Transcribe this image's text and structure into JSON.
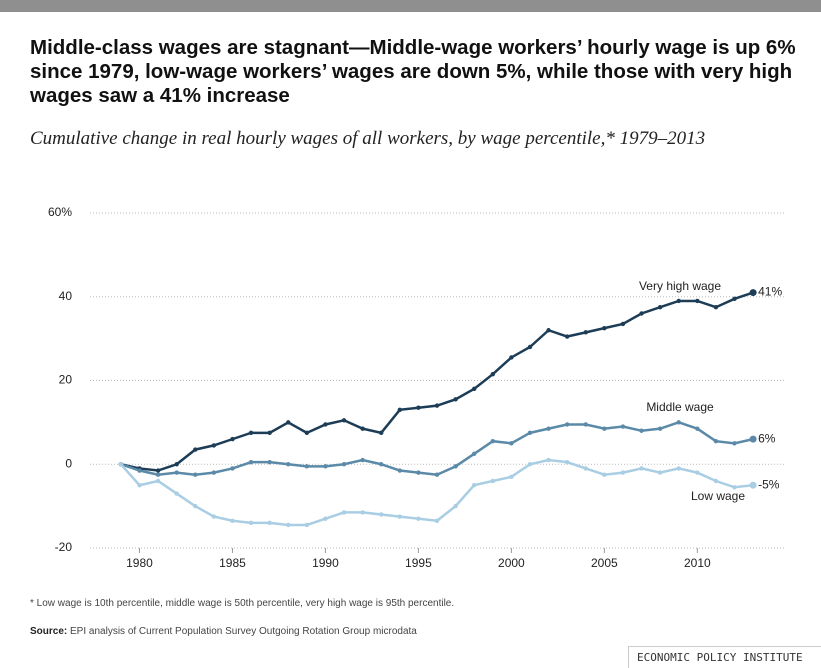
{
  "chart_data": {
    "type": "line",
    "title": "Middle-class wages are stagnant—Middle-wage workers’ hourly wage is up 6% since 1979, low-wage workers’ wages are down 5%, while those with very high wages saw a 41% increase",
    "subtitle": "Cumulative change in real hourly wages of all workers, by wage percentile,* 1979–2013",
    "x": [
      1979,
      1980,
      1981,
      1982,
      1983,
      1984,
      1985,
      1986,
      1987,
      1988,
      1989,
      1990,
      1991,
      1992,
      1993,
      1994,
      1995,
      1996,
      1997,
      1998,
      1999,
      2000,
      2001,
      2002,
      2003,
      2004,
      2005,
      2006,
      2007,
      2008,
      2009,
      2010,
      2011,
      2012,
      2013
    ],
    "series": [
      {
        "name": "Very high wage",
        "color": "#1d3d57",
        "end_label": "41%",
        "values": [
          0,
          -1,
          -1.5,
          0,
          3.5,
          4.5,
          6,
          7.5,
          7.5,
          10,
          7.5,
          9.5,
          10.5,
          8.5,
          7.5,
          13,
          13.5,
          14,
          15.5,
          18,
          21.5,
          25.5,
          28,
          32,
          30.5,
          31.5,
          32.5,
          33.5,
          36,
          37.5,
          39,
          39,
          37.5,
          39.5,
          41
        ]
      },
      {
        "name": "Middle wage",
        "color": "#5b8aa8",
        "end_label": "6%",
        "values": [
          0,
          -1.5,
          -2.5,
          -2,
          -2.5,
          -2,
          -1,
          0.5,
          0.5,
          0,
          -0.5,
          -0.5,
          0,
          1,
          0,
          -1.5,
          -2,
          -2.5,
          -0.5,
          2.5,
          5.5,
          5,
          7.5,
          8.5,
          9.5,
          9.5,
          8.5,
          9,
          8,
          8.5,
          10,
          8.5,
          5.5,
          5,
          6
        ]
      },
      {
        "name": "Low wage",
        "color": "#a9cde3",
        "end_label": "-5%",
        "values": [
          0,
          -5,
          -4,
          -7,
          -10,
          -12.5,
          -13.5,
          -14,
          -14,
          -14.5,
          -14.5,
          -13,
          -11.5,
          -11.5,
          -12,
          -12.5,
          -13,
          -13.5,
          -10,
          -5,
          -4,
          -3,
          0,
          1,
          0.5,
          -1,
          -2.5,
          -2,
          -1,
          -2,
          -1,
          -2,
          -4,
          -5.5,
          -5
        ]
      }
    ],
    "xlim": [
      1977.5,
      2014.5
    ],
    "xticks": [
      1980,
      1985,
      1990,
      1995,
      2000,
      2005,
      2010
    ],
    "ylim": [
      -20,
      60
    ],
    "yticks": [
      -20,
      0,
      20,
      40,
      {
        "value": 60,
        "label": "60%"
      }
    ],
    "grid": true,
    "footnote": "* Low wage is 10th percentile, middle wage is 50th percentile, very high wage is 95th percentile.",
    "source_label": "Source:",
    "source": "EPI analysis of Current Population Survey Outgoing Rotation Group microdata",
    "publisher": "ECONOMIC POLICY INSTITUTE"
  }
}
